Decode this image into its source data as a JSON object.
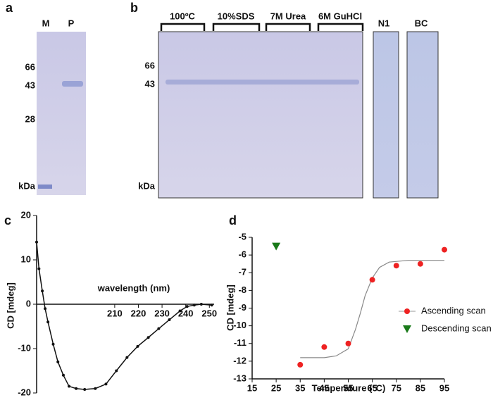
{
  "panels": {
    "a": {
      "label": "a",
      "lanes": [
        "M",
        "P"
      ],
      "markers": [
        "66",
        "43",
        "28"
      ],
      "unit": "kDa"
    },
    "b": {
      "label": "b",
      "groups": [
        "100ºC",
        "10%SDS",
        "7M Urea",
        "6M GuHCl"
      ],
      "extra_lanes": [
        "N1",
        "BC"
      ],
      "markers": [
        "66",
        "43"
      ],
      "unit": "kDa"
    },
    "c": {
      "label": "c"
    },
    "d": {
      "label": "d"
    }
  },
  "chart_data": [
    {
      "type": "line",
      "x_label": "wavelength (nm)",
      "y_label": "CD [mdeg]",
      "xlim": [
        177,
        252
      ],
      "xticks": [
        210,
        220,
        230,
        240,
        250
      ],
      "ylim": [
        -20,
        20
      ],
      "yticks": [
        -20,
        -10,
        0,
        10,
        20
      ],
      "x": [
        177,
        178,
        179.4,
        180.6,
        181.8,
        184,
        186,
        188.3,
        190.7,
        193.7,
        197.3,
        201.8,
        206.3,
        210.7,
        215.2,
        219.7,
        224.2,
        228.6,
        233.1,
        237.6,
        240.6,
        243.6,
        246.6,
        251
      ],
      "series": [
        {
          "color": "#111111",
          "values": [
            14,
            8,
            3,
            -1,
            -4,
            -9,
            -13,
            -16,
            -18.5,
            -19,
            -19.2,
            -19,
            -18,
            -15,
            -12,
            -9.5,
            -7.5,
            -5.5,
            -3.5,
            -1.5,
            -0.5,
            -0.2,
            0,
            -0.2
          ]
        }
      ]
    },
    {
      "type": "scatter",
      "x_label": "Temperature (°C)",
      "y_label": "CD [mdeg]",
      "xlim": [
        15,
        95
      ],
      "xticks": [
        15,
        25,
        35,
        45,
        55,
        65,
        75,
        85,
        95
      ],
      "ylim": [
        -13,
        -5
      ],
      "yticks": [
        -5,
        -6,
        -7,
        -8,
        -9,
        -10,
        -11,
        -12,
        -13
      ],
      "legend": "lower right",
      "series": [
        {
          "name": "Ascending scan",
          "color": "#ee2222",
          "marker": "circle",
          "x": [
            35,
            45,
            55,
            65,
            75,
            85,
            95
          ],
          "values": [
            -12.2,
            -11.2,
            -11.0,
            -7.4,
            -6.6,
            -6.5,
            -5.7
          ]
        },
        {
          "name": "Descending scan",
          "color": "#1a7a1a",
          "marker": "triangle",
          "x": [
            25
          ],
          "values": [
            -5.5
          ]
        }
      ],
      "fit": {
        "color": "#888888",
        "x": [
          35,
          45,
          50,
          55,
          58,
          60,
          62,
          65,
          68,
          72,
          80,
          95
        ],
        "values": [
          -11.8,
          -11.8,
          -11.7,
          -11.3,
          -10.2,
          -9.3,
          -8.3,
          -7.3,
          -6.7,
          -6.4,
          -6.3,
          -6.3
        ]
      }
    }
  ]
}
